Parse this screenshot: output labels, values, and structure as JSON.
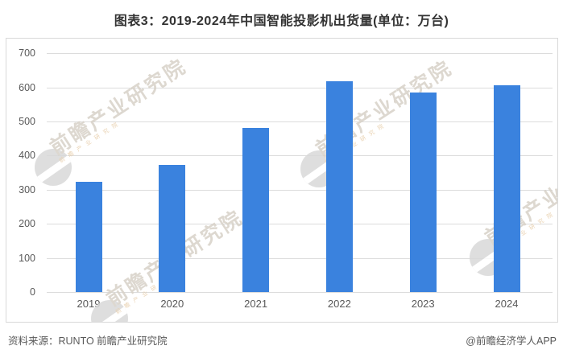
{
  "title": "图表3：2019-2024年中国智能投影机出货量(单位：万台)",
  "footer": {
    "source": "资料来源：RUNTO 前瞻产业研究院",
    "credit": "@前瞻经济学人APP"
  },
  "watermark": {
    "text": "前瞻产业研究院",
    "logo": "qianzhan-swoosh-logo"
  },
  "colors": {
    "bar": "#3a82de",
    "gridline": "#dcdcdc",
    "plot_border": "#d9d9d9",
    "axis_label": "#595959",
    "title": "#333333",
    "footer": "#595959",
    "watermark_text": "#d8d2c8",
    "watermark_subtext": "#e6cba6",
    "watermark_logo": "#d9d9d9"
  },
  "chart_data": {
    "type": "bar",
    "title": "图表3：2019-2024年中国智能投影机出货量(单位：万台)",
    "unit": "万台",
    "categories": [
      "2019",
      "2020",
      "2021",
      "2022",
      "2023",
      "2024"
    ],
    "values": [
      324,
      372,
      480,
      618,
      586,
      605
    ],
    "xlabel": "",
    "ylabel": "",
    "ylim": [
      0,
      700
    ],
    "yticks": [
      0,
      100,
      200,
      300,
      400,
      500,
      600,
      700
    ],
    "grid": true,
    "legend": false
  }
}
